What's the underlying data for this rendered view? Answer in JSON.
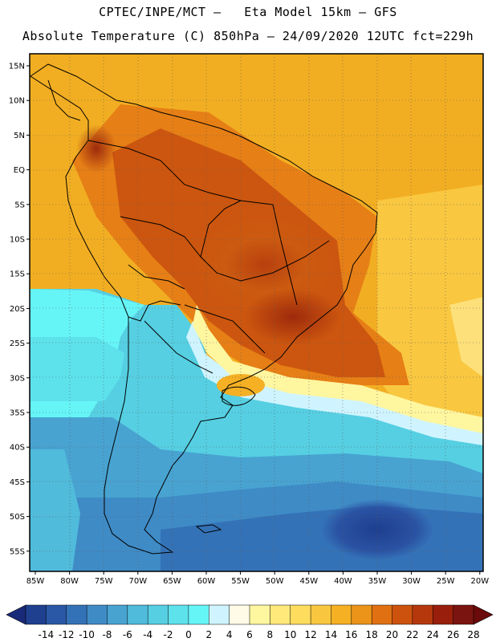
{
  "header": {
    "line1": "CPTEC/INPE/MCT –   Eta Model 15km – GFS",
    "line2": "Absolute Temperature (C) 850hPa – 24/09/2020 12UTC fct=229h"
  },
  "map": {
    "lat_labels": [
      "15N",
      "10N",
      "5N",
      "EQ",
      "5S",
      "10S",
      "15S",
      "20S",
      "25S",
      "30S",
      "35S",
      "40S",
      "45S",
      "50S",
      "55S"
    ],
    "lon_labels": [
      "85W",
      "80W",
      "75W",
      "70W",
      "65W",
      "60W",
      "55W",
      "50W",
      "45W",
      "40W",
      "35W",
      "30W",
      "25W",
      "20W"
    ]
  },
  "colorbar": {
    "labels": [
      "-14",
      "-12",
      "-10",
      "-8",
      "-6",
      "-4",
      "-2",
      "0",
      "2",
      "4",
      "6",
      "8",
      "10",
      "12",
      "14",
      "16",
      "18",
      "20",
      "22",
      "24",
      "26",
      "28"
    ],
    "colors": [
      "#1f3f8f",
      "#2a58a6",
      "#3472b7",
      "#3f8bc6",
      "#48a3d1",
      "#50bbdb",
      "#56cfe2",
      "#5de2ec",
      "#66f5f7",
      "#cff4ff",
      "#fffbe6",
      "#fff6a0",
      "#ffe97a",
      "#fddc5e",
      "#f9c73f",
      "#f5b023",
      "#eb9419",
      "#e07012",
      "#cc520e",
      "#b5380d",
      "#991f0c",
      "#7a1410"
    ],
    "left_cap": "#1a2a7a",
    "right_cap": "#6a0a0a"
  }
}
